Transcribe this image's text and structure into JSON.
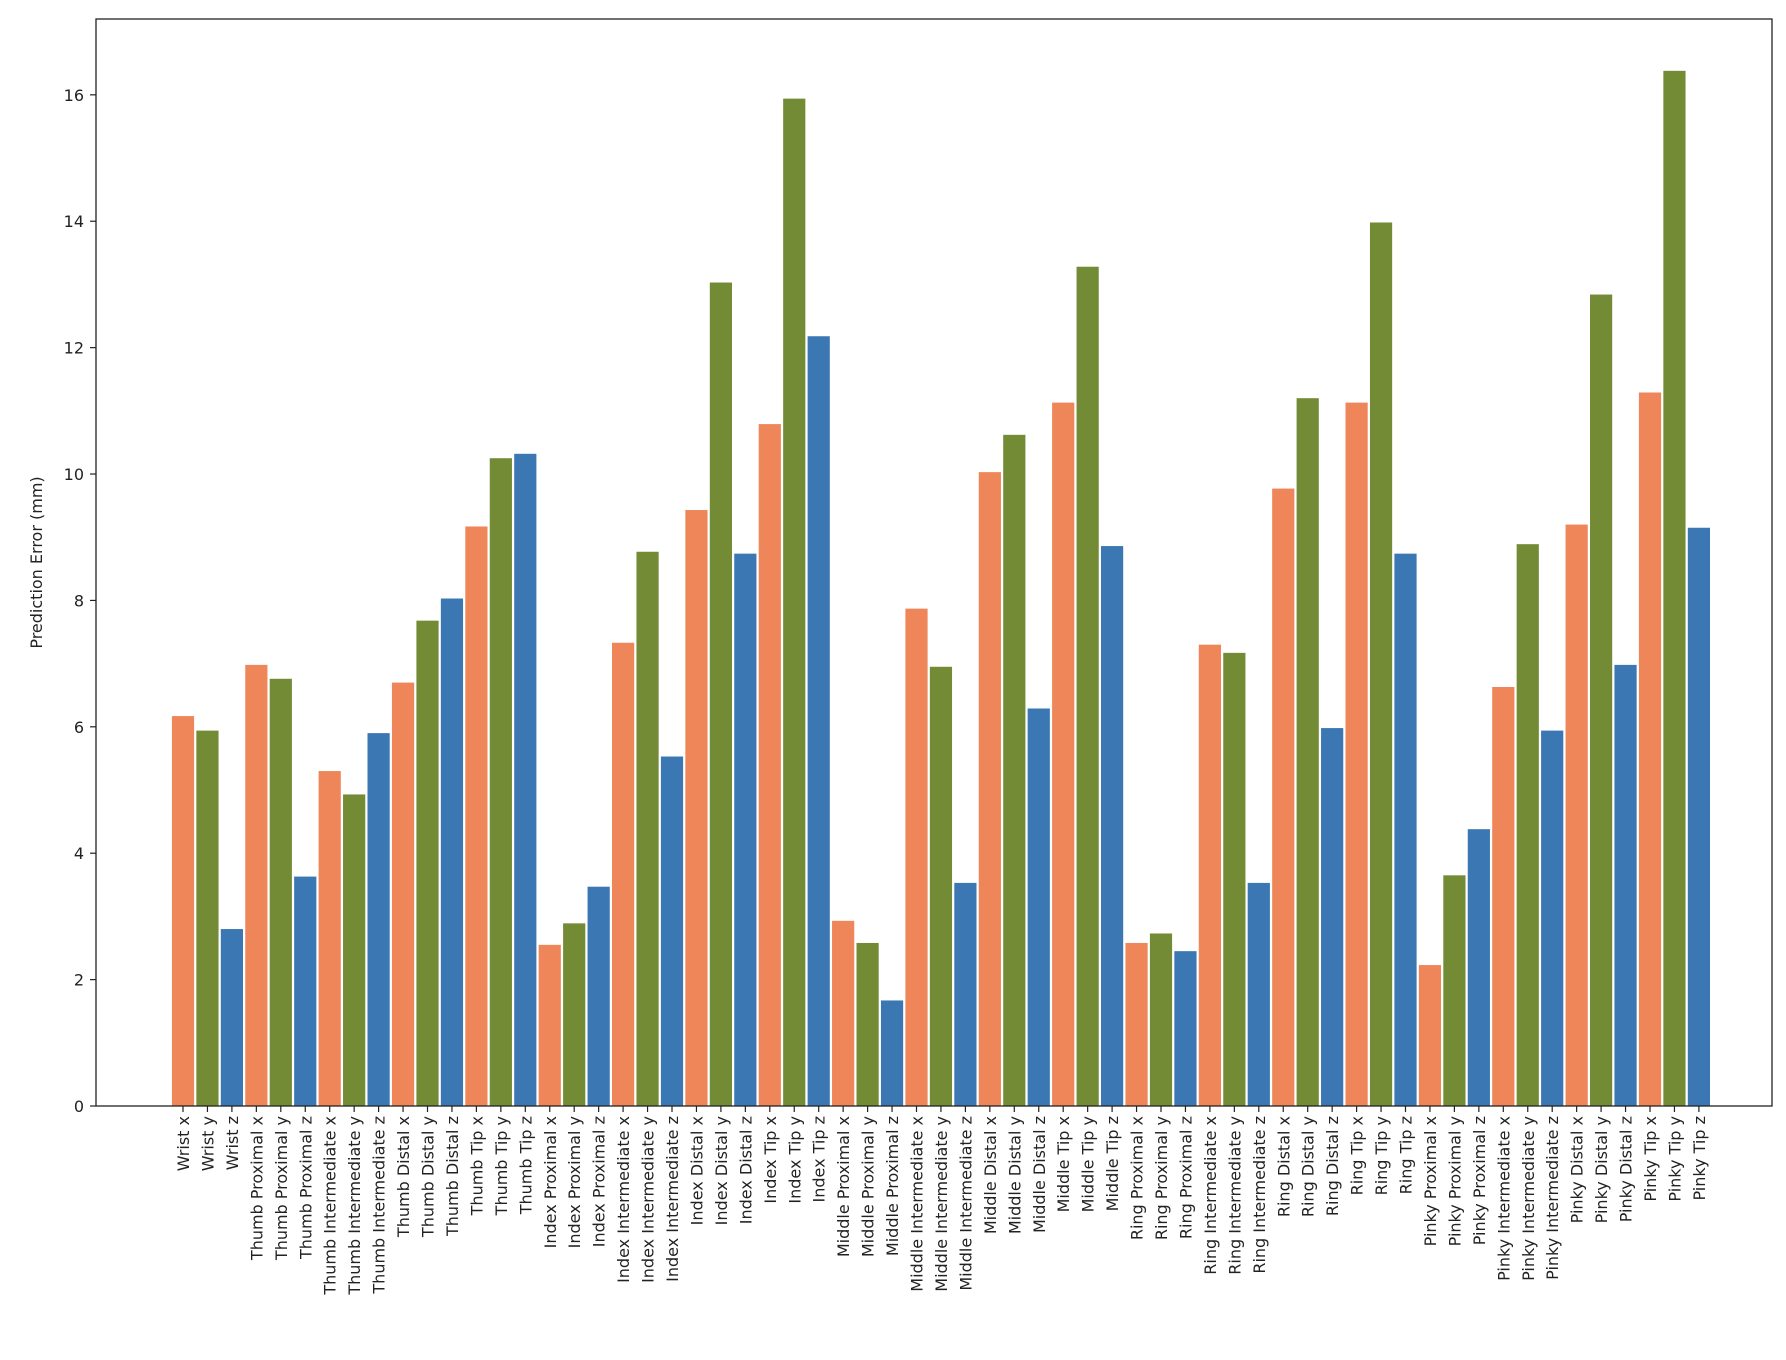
{
  "chart_data": {
    "type": "bar",
    "title": "",
    "xlabel": "",
    "ylabel": "Prediction Error (mm)",
    "ylim": [
      0,
      17.2
    ],
    "yticks": [
      0,
      2,
      4,
      6,
      8,
      10,
      12,
      14,
      16
    ],
    "grid": false,
    "legend": "none",
    "bar_colors": {
      "x": "#ee8659",
      "y": "#738b35",
      "z": "#3a77b3"
    },
    "axis_color": "#222222",
    "categories": [
      "Wrist x",
      "Wrist y",
      "Wrist z",
      "Thumb Proximal x",
      "Thumb Proximal y",
      "Thumb Proximal z",
      "Thumb Intermediate x",
      "Thumb Intermediate y",
      "Thumb Intermediate z",
      "Thumb Distal x",
      "Thumb Distal y",
      "Thumb Distal z",
      "Thumb Tip x",
      "Thumb Tip y",
      "Thumb Tip z",
      "Index Proximal x",
      "Index Proximal y",
      "Index Proximal z",
      "Index Intermediate x",
      "Index Intermediate y",
      "Index Intermediate z",
      "Index Distal x",
      "Index Distal y",
      "Index Distal z",
      "Index Tip x",
      "Index Tip y",
      "Index Tip z",
      "Middle Proximal x",
      "Middle Proximal y",
      "Middle Proximal z",
      "Middle Intermediate x",
      "Middle Intermediate y",
      "Middle Intermediate z",
      "Middle Distal x",
      "Middle Distal y",
      "Middle Distal z",
      "Middle Tip x",
      "Middle Tip y",
      "Middle Tip z",
      "Ring Proximal x",
      "Ring Proximal y",
      "Ring Proximal z",
      "Ring Intermediate x",
      "Ring Intermediate y",
      "Ring Intermediate z",
      "Ring Distal x",
      "Ring Distal y",
      "Ring Distal z",
      "Ring Tip x",
      "Ring Tip y",
      "Ring Tip z",
      "Pinky Proximal x",
      "Pinky Proximal y",
      "Pinky Proximal z",
      "Pinky Intermediate x",
      "Pinky Intermediate y",
      "Pinky Intermediate z",
      "Pinky Distal x",
      "Pinky Distal y",
      "Pinky Distal z",
      "Pinky Tip x",
      "Pinky Tip y",
      "Pinky Tip z"
    ],
    "values": [
      6.17,
      5.94,
      2.8,
      6.98,
      6.76,
      3.63,
      5.3,
      4.93,
      5.9,
      6.7,
      7.68,
      8.03,
      9.17,
      10.25,
      10.32,
      2.55,
      2.89,
      3.47,
      7.33,
      8.77,
      5.53,
      9.43,
      13.03,
      8.74,
      10.79,
      15.94,
      12.18,
      2.93,
      2.58,
      1.67,
      7.87,
      6.95,
      3.53,
      10.03,
      10.62,
      6.29,
      11.13,
      13.28,
      8.86,
      2.58,
      2.73,
      2.45,
      7.3,
      7.17,
      3.53,
      9.77,
      11.2,
      5.98,
      11.13,
      13.98,
      8.74,
      2.23,
      3.65,
      4.38,
      6.63,
      8.89,
      5.94,
      9.2,
      12.84,
      6.98,
      11.29,
      16.38,
      9.15
    ]
  }
}
